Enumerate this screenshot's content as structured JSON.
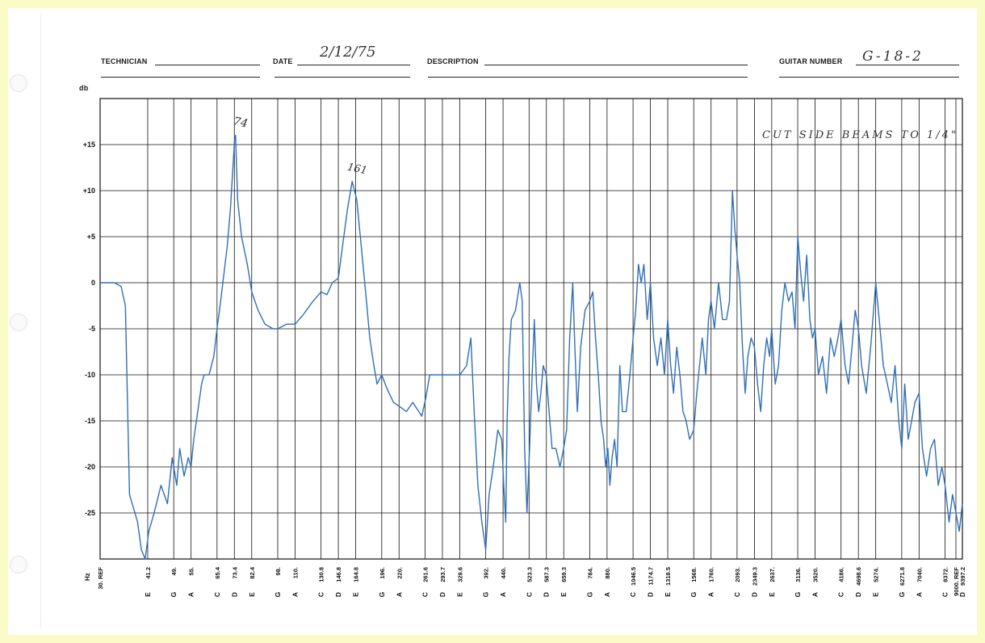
{
  "form": {
    "technician_label": "TECHNICIAN",
    "technician_value": "",
    "date_label": "DATE",
    "date_value": "2/12/75",
    "description_label": "DESCRIPTION",
    "description_value": "",
    "guitar_number_label": "GUITAR NUMBER",
    "guitar_number_value": "G-18-2"
  },
  "annotations": {
    "note": "CUT SIDE BEAMS TO 1/4\"",
    "peak1": "74",
    "peak2": "161"
  },
  "colors": {
    "trace": "#2f6fb8",
    "grid": "#111111",
    "paper": "#fbfbc8"
  },
  "chart_data": {
    "type": "line",
    "title": "",
    "ylabel": "db",
    "xlabel": "Hz",
    "x_scale": "log",
    "xlim": [
      30,
      9397.2
    ],
    "ylim": [
      -30,
      20
    ],
    "grid": true,
    "y_ticks": [
      "+15",
      "+10",
      "+5",
      "0",
      "-5",
      "-10",
      "-15",
      "-20",
      "-25"
    ],
    "x_ticks": [
      {
        "hz": "30. REF",
        "note": ""
      },
      {
        "hz": "41.2",
        "note": "E"
      },
      {
        "hz": "49.",
        "note": "G"
      },
      {
        "hz": "55.",
        "note": "A"
      },
      {
        "hz": "65.4",
        "note": "C"
      },
      {
        "hz": "73.4",
        "note": "D"
      },
      {
        "hz": "82.4",
        "note": "E"
      },
      {
        "hz": "98.",
        "note": "G"
      },
      {
        "hz": "110.",
        "note": "A"
      },
      {
        "hz": "130.8",
        "note": "C"
      },
      {
        "hz": "146.8",
        "note": "D"
      },
      {
        "hz": "164.8",
        "note": "E"
      },
      {
        "hz": "196.",
        "note": "G"
      },
      {
        "hz": "220.",
        "note": "A"
      },
      {
        "hz": "261.6",
        "note": "C"
      },
      {
        "hz": "293.7",
        "note": "D"
      },
      {
        "hz": "329.6",
        "note": "E"
      },
      {
        "hz": "392.",
        "note": "G"
      },
      {
        "hz": "440.",
        "note": "A"
      },
      {
        "hz": "523.3",
        "note": "C"
      },
      {
        "hz": "587.3",
        "note": "D"
      },
      {
        "hz": "659.3",
        "note": "E"
      },
      {
        "hz": "784.",
        "note": "G"
      },
      {
        "hz": "880.",
        "note": "A"
      },
      {
        "hz": "1046.5",
        "note": "C"
      },
      {
        "hz": "1174.7",
        "note": "D"
      },
      {
        "hz": "1318.5",
        "note": "E"
      },
      {
        "hz": "1568.",
        "note": "G"
      },
      {
        "hz": "1760.",
        "note": "A"
      },
      {
        "hz": "2093.",
        "note": "C"
      },
      {
        "hz": "2349.3",
        "note": "D"
      },
      {
        "hz": "2637.",
        "note": "E"
      },
      {
        "hz": "3136.",
        "note": "G"
      },
      {
        "hz": "3520.",
        "note": "A"
      },
      {
        "hz": "4186.",
        "note": "C"
      },
      {
        "hz": "4698.6",
        "note": "D"
      },
      {
        "hz": "5274.",
        "note": "E"
      },
      {
        "hz": "6271.8",
        "note": "G"
      },
      {
        "hz": "7040.",
        "note": "A"
      },
      {
        "hz": "8372.",
        "note": "C"
      },
      {
        "hz": "9000. REF",
        "note": ""
      },
      {
        "hz": "9397.2",
        "note": "D"
      }
    ],
    "series": [
      {
        "points": [
          [
            30,
            0
          ],
          [
            33,
            0
          ],
          [
            34.5,
            -0.4
          ],
          [
            35.5,
            -2.5
          ],
          [
            36.5,
            -23
          ],
          [
            37.5,
            -24.5
          ],
          [
            38.5,
            -26
          ],
          [
            39.5,
            -29
          ],
          [
            40.5,
            -30
          ],
          [
            41.5,
            -27
          ],
          [
            43,
            -25
          ],
          [
            45,
            -22
          ],
          [
            47,
            -24
          ],
          [
            48.5,
            -19
          ],
          [
            50,
            -22
          ],
          [
            51,
            -18
          ],
          [
            52.5,
            -21
          ],
          [
            54,
            -19
          ],
          [
            55,
            -20
          ],
          [
            56,
            -17
          ],
          [
            57,
            -15
          ],
          [
            58,
            -13
          ],
          [
            59,
            -11
          ],
          [
            60,
            -10
          ],
          [
            62,
            -10
          ],
          [
            64,
            -8
          ],
          [
            65.4,
            -5
          ],
          [
            67,
            -2
          ],
          [
            68.5,
            1
          ],
          [
            70,
            4
          ],
          [
            71.5,
            8
          ],
          [
            73.5,
            15.5
          ],
          [
            74,
            16
          ],
          [
            75,
            9
          ],
          [
            77,
            5
          ],
          [
            80,
            2
          ],
          [
            82.4,
            -1
          ],
          [
            86,
            -3
          ],
          [
            90,
            -4.5
          ],
          [
            95,
            -5
          ],
          [
            98,
            -5
          ],
          [
            104,
            -4.5
          ],
          [
            110,
            -4.5
          ],
          [
            116,
            -3.5
          ],
          [
            124,
            -2
          ],
          [
            130.8,
            -1
          ],
          [
            136,
            -1.3
          ],
          [
            141,
            0
          ],
          [
            146.8,
            0.5
          ],
          [
            151,
            4
          ],
          [
            156,
            8
          ],
          [
            161,
            11
          ],
          [
            166,
            9
          ],
          [
            171,
            4
          ],
          [
            177,
            -2
          ],
          [
            181,
            -6
          ],
          [
            186,
            -9
          ],
          [
            190,
            -11
          ],
          [
            196,
            -10
          ],
          [
            203,
            -11.5
          ],
          [
            212,
            -13
          ],
          [
            222,
            -13.5
          ],
          [
            231,
            -14
          ],
          [
            241,
            -13
          ],
          [
            251,
            -14
          ],
          [
            256,
            -14.5
          ],
          [
            263,
            -12.5
          ],
          [
            270,
            -10
          ],
          [
            285,
            -10
          ],
          [
            300,
            -10
          ],
          [
            315,
            -10
          ],
          [
            330,
            -10
          ],
          [
            345,
            -9
          ],
          [
            355,
            -6
          ],
          [
            363,
            -14
          ],
          [
            372,
            -22
          ],
          [
            382,
            -26
          ],
          [
            392,
            -29
          ],
          [
            401,
            -23
          ],
          [
            412,
            -20
          ],
          [
            425,
            -16
          ],
          [
            436,
            -17
          ],
          [
            442,
            -22
          ],
          [
            448,
            -26
          ],
          [
            452,
            -15
          ],
          [
            458,
            -8
          ],
          [
            465,
            -4
          ],
          [
            478,
            -3
          ],
          [
            492,
            0
          ],
          [
            500,
            -2
          ],
          [
            508,
            -18
          ],
          [
            516,
            -25
          ],
          [
            525,
            -18
          ],
          [
            533,
            -11
          ],
          [
            542,
            -4
          ],
          [
            550,
            -11
          ],
          [
            558,
            -14
          ],
          [
            566,
            -12
          ],
          [
            575,
            -9
          ],
          [
            587,
            -10
          ],
          [
            598,
            -14
          ],
          [
            610,
            -18
          ],
          [
            626,
            -18
          ],
          [
            643,
            -20
          ],
          [
            659,
            -18
          ],
          [
            672,
            -16
          ],
          [
            686,
            -6
          ],
          [
            700,
            0
          ],
          [
            710,
            -7
          ],
          [
            722,
            -14
          ],
          [
            738,
            -7
          ],
          [
            760,
            -3
          ],
          [
            784,
            -2
          ],
          [
            800,
            -1
          ],
          [
            815,
            -6
          ],
          [
            830,
            -10
          ],
          [
            845,
            -15
          ],
          [
            860,
            -17
          ],
          [
            872,
            -20
          ],
          [
            885,
            -18
          ],
          [
            897,
            -22
          ],
          [
            910,
            -19
          ],
          [
            925,
            -17
          ],
          [
            941,
            -20
          ],
          [
            958,
            -9
          ],
          [
            975,
            -14
          ],
          [
            1000,
            -14
          ],
          [
            1025,
            -10
          ],
          [
            1046.5,
            -6
          ],
          [
            1065,
            -3
          ],
          [
            1085,
            2
          ],
          [
            1105,
            0
          ],
          [
            1125,
            2
          ],
          [
            1150,
            -4
          ],
          [
            1174.7,
            0
          ],
          [
            1200,
            -6
          ],
          [
            1230,
            -9
          ],
          [
            1260,
            -6
          ],
          [
            1290,
            -10
          ],
          [
            1318.5,
            -4
          ],
          [
            1345,
            -9
          ],
          [
            1370,
            -12
          ],
          [
            1400,
            -7
          ],
          [
            1430,
            -10
          ],
          [
            1460,
            -14
          ],
          [
            1490,
            -15
          ],
          [
            1525,
            -17
          ],
          [
            1568,
            -16
          ],
          [
            1600,
            -12
          ],
          [
            1630,
            -9
          ],
          [
            1660,
            -6
          ],
          [
            1700,
            -10
          ],
          [
            1730,
            -4
          ],
          [
            1760,
            -2
          ],
          [
            1800,
            -5
          ],
          [
            1850,
            0
          ],
          [
            1900,
            -4
          ],
          [
            1950,
            -4
          ],
          [
            1990,
            -2
          ],
          [
            2030,
            10
          ],
          [
            2060,
            6
          ],
          [
            2093,
            3
          ],
          [
            2130,
            0
          ],
          [
            2170,
            -7
          ],
          [
            2210,
            -12
          ],
          [
            2250,
            -8
          ],
          [
            2300,
            -6
          ],
          [
            2349.3,
            -7
          ],
          [
            2400,
            -11
          ],
          [
            2450,
            -14
          ],
          [
            2500,
            -9
          ],
          [
            2550,
            -6
          ],
          [
            2600,
            -8
          ],
          [
            2637,
            -5
          ],
          [
            2700,
            -11
          ],
          [
            2760,
            -9
          ],
          [
            2820,
            -3
          ],
          [
            2880,
            0
          ],
          [
            2950,
            -2
          ],
          [
            3020,
            -1
          ],
          [
            3080,
            -5
          ],
          [
            3136,
            5
          ],
          [
            3200,
            1
          ],
          [
            3260,
            -2
          ],
          [
            3330,
            3
          ],
          [
            3400,
            -4
          ],
          [
            3460,
            -6
          ],
          [
            3520,
            -5
          ],
          [
            3600,
            -10
          ],
          [
            3700,
            -8
          ],
          [
            3800,
            -12
          ],
          [
            3900,
            -6
          ],
          [
            4000,
            -8
          ],
          [
            4100,
            -6
          ],
          [
            4186,
            -4
          ],
          [
            4300,
            -9
          ],
          [
            4400,
            -11
          ],
          [
            4500,
            -7
          ],
          [
            4600,
            -3
          ],
          [
            4698.6,
            -5
          ],
          [
            4800,
            -9
          ],
          [
            4950,
            -12
          ],
          [
            5100,
            -7
          ],
          [
            5274,
            0
          ],
          [
            5400,
            -4
          ],
          [
            5550,
            -9
          ],
          [
            5700,
            -11
          ],
          [
            5850,
            -13
          ],
          [
            6000,
            -9
          ],
          [
            6150,
            -15
          ],
          [
            6271.8,
            -18
          ],
          [
            6400,
            -11
          ],
          [
            6550,
            -17
          ],
          [
            6700,
            -15
          ],
          [
            6850,
            -13
          ],
          [
            7040,
            -12
          ],
          [
            7200,
            -18
          ],
          [
            7400,
            -21
          ],
          [
            7600,
            -18
          ],
          [
            7800,
            -17
          ],
          [
            8000,
            -22
          ],
          [
            8200,
            -20
          ],
          [
            8372,
            -22
          ],
          [
            8600,
            -26
          ],
          [
            8800,
            -23
          ],
          [
            9000,
            -25
          ],
          [
            9200,
            -27
          ],
          [
            9397.2,
            -24
          ]
        ]
      }
    ]
  }
}
